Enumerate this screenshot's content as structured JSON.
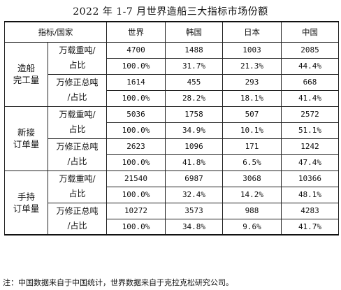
{
  "title": "2022 年 1-7 月世界造船三大指标市场份额",
  "header": {
    "label": "指标/国家",
    "columns": [
      "世界",
      "韩国",
      "日本",
      "中国"
    ]
  },
  "groups": [
    {
      "category_line1": "造船",
      "category_line2": "完工量",
      "metrics": [
        {
          "label_line1": "万载重吨/",
          "label_line2": "占比",
          "values": [
            "4700",
            "1488",
            "1003",
            "2085"
          ],
          "shares": [
            "100.0%",
            "31.7%",
            "21.3%",
            "44.4%"
          ]
        },
        {
          "label_line1": "万修正总吨",
          "label_line2": "/占比",
          "values": [
            "1614",
            "455",
            "293",
            "668"
          ],
          "shares": [
            "100.0%",
            "28.2%",
            "18.1%",
            "41.4%"
          ]
        }
      ]
    },
    {
      "category_line1": "新接",
      "category_line2": "订单量",
      "metrics": [
        {
          "label_line1": "万载重吨/",
          "label_line2": "占比",
          "values": [
            "5036",
            "1758",
            "507",
            "2572"
          ],
          "shares": [
            "100.0%",
            "34.9%",
            "10.1%",
            "51.1%"
          ]
        },
        {
          "label_line1": "万修正总吨",
          "label_line2": "/占比",
          "values": [
            "2623",
            "1096",
            "171",
            "1242"
          ],
          "shares": [
            "100.0%",
            "41.8%",
            "6.5%",
            "47.4%"
          ]
        }
      ]
    },
    {
      "category_line1": "手持",
      "category_line2": "订单量",
      "metrics": [
        {
          "label_line1": "万载重吨/",
          "label_line2": "占比",
          "values": [
            "21540",
            "6987",
            "3068",
            "10366"
          ],
          "shares": [
            "100.0%",
            "32.4%",
            "14.2%",
            "48.1%"
          ]
        },
        {
          "label_line1": "万修正总吨",
          "label_line2": "/占比",
          "values": [
            "10272",
            "3573",
            "988",
            "4283"
          ],
          "shares": [
            "100.0%",
            "34.8%",
            "9.6%",
            "41.7%"
          ]
        }
      ]
    }
  ],
  "note": "注：中国数据来自于中国统计，世界数据来自于克拉克松研究公司。"
}
